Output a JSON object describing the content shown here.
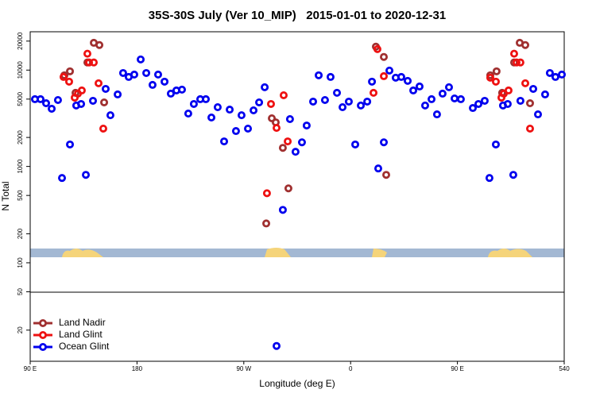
{
  "chart_data": {
    "type": "scatter",
    "title": "35S-30S July (Ver 10_MIP)   2015-01-01 to 2020-12-31",
    "x_label": "Longitude (deg E)",
    "y_label": "N Total",
    "log_y": true,
    "legend": "bottomleft",
    "xlim": [
      90,
      540
    ],
    "ylim": [
      9.5,
      25000
    ],
    "xticks": [
      {
        "value": 90,
        "label": "90 E"
      },
      180,
      {
        "value": 270,
        "label": "90 W"
      },
      {
        "value": 360,
        "label": "0"
      },
      {
        "value": 450,
        "label": "90 E"
      },
      540
    ],
    "yticks": [
      20,
      50,
      100,
      200,
      500,
      1000,
      2000,
      5000,
      10000,
      20000
    ],
    "series": [
      {
        "name": "Land Nadir",
        "color": "#a03030",
        "x": [
          118.8,
          123.5,
          128.2,
          138.2,
          143.6,
          148.3,
          152.3,
          288.9,
          293.6,
          296.9,
          302.9,
          307.6,
          381.3,
          388.0,
          390.0,
          477.7,
          483.0,
          487.7,
          497.8,
          502.5,
          507.2,
          511.2
        ],
        "values": [
          8830,
          9710,
          5810,
          12000,
          19200,
          18200,
          4620,
          256,
          3160,
          2870,
          1560,
          592,
          17500,
          13700,
          818,
          8830,
          9710,
          5810,
          12000,
          19200,
          18200,
          4530
        ]
      },
      {
        "name": "Land Glint",
        "color": "#ee1111",
        "x": [
          118.1,
          122.8,
          127.5,
          130.2,
          133.5,
          138.2,
          139.6,
          143.6,
          147.6,
          151.6,
          289.5,
          292.9,
          297.6,
          303.6,
          307.0,
          379.3,
          382.6,
          388.0,
          477.7,
          482.4,
          487.1,
          489.1,
          493.1,
          497.8,
          499.8,
          503.1,
          507.2,
          511.2
        ],
        "values": [
          8490,
          7590,
          5180,
          5700,
          6150,
          14800,
          12000,
          12000,
          7300,
          2470,
          527,
          4450,
          2510,
          5480,
          1820,
          5810,
          16500,
          8650,
          8340,
          7590,
          5180,
          5700,
          6150,
          14800,
          12000,
          12000,
          7300,
          2470
        ]
      },
      {
        "name": "Ocean Glint",
        "color": "#0000ee",
        "x": [
          94.0,
          98.7,
          103.4,
          108.1,
          113.4,
          116.8,
          123.5,
          128.8,
          132.9,
          136.9,
          142.9,
          153.6,
          157.6,
          163.7,
          168.3,
          173.0,
          177.7,
          183.1,
          187.8,
          193.1,
          197.8,
          203.2,
          208.5,
          213.2,
          217.9,
          223.2,
          227.9,
          233.3,
          238.0,
          242.7,
          248.0,
          253.4,
          258.1,
          263.4,
          268.1,
          273.5,
          278.2,
          282.9,
          287.6,
          302.9,
          308.9,
          313.6,
          319.0,
          323.0,
          328.4,
          333.1,
          338.4,
          343.1,
          348.5,
          353.2,
          358.5,
          363.9,
          368.6,
          374.0,
          378.0,
          383.3,
          388.0,
          392.7,
          398.0,
          402.7,
          408.1,
          412.8,
          418.1,
          422.8,
          428.2,
          432.8,
          437.5,
          442.9,
          447.6,
          452.9,
          463.0,
          467.7,
          473.0,
          477.0,
          482.4,
          488.4,
          492.4,
          497.1,
          503.1,
          513.9,
          517.9,
          523.9,
          527.9,
          532.6,
          538.0,
          297.6
        ],
        "values": [
          4990,
          4990,
          4530,
          3970,
          4890,
          759,
          1690,
          4290,
          4450,
          818,
          4800,
          6380,
          3400,
          5590,
          9330,
          8490,
          8990,
          12900,
          9330,
          7020,
          8990,
          7590,
          5700,
          6150,
          6270,
          3540,
          4450,
          4990,
          4990,
          3220,
          4120,
          1820,
          3890,
          2330,
          3400,
          2470,
          3820,
          4620,
          6640,
          354,
          3100,
          1420,
          1780,
          2660,
          4710,
          8830,
          4890,
          8490,
          5810,
          4120,
          4710,
          1690,
          4290,
          4710,
          7590,
          953,
          1780,
          9890,
          8340,
          8490,
          7730,
          6150,
          6760,
          4290,
          4990,
          3470,
          5700,
          6640,
          5080,
          4990,
          4040,
          4450,
          4800,
          759,
          1690,
          4290,
          4450,
          818,
          4800,
          6380,
          3470,
          5590,
          9330,
          8490,
          8990,
          13.7
        ]
      }
    ]
  }
}
